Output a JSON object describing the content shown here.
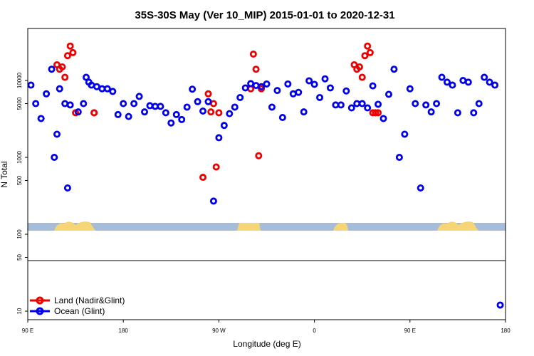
{
  "chart_data": {
    "type": "scatter",
    "title": "35S-30S May (Ver 10_MIP)   2015-01-01 to 2020-12-31",
    "xlabel": "Longitude (deg E)",
    "ylabel": "N Total",
    "x_tick_labels": [
      "90 E",
      "180",
      "90 W",
      "0",
      "90 E",
      "180"
    ],
    "xlim": [
      90,
      540
    ],
    "y_scale": "log",
    "ylim": [
      7,
      50000
    ],
    "y_tick_labels": [
      "10",
      "50",
      "100",
      "500",
      "1000",
      "5000",
      "10000"
    ],
    "y_tick_values": [
      10,
      50,
      100,
      500,
      1000,
      5000,
      10000
    ],
    "y_axis_break": [
      50,
      150
    ],
    "land_ocean_strip": {
      "ocean_color": "#a6bdd9",
      "land_color": "#f5d576"
    },
    "legend": {
      "position": "bottom-left",
      "entries": [
        "Land (Nadir&Glint)",
        "Ocean (Glint)"
      ]
    },
    "series": [
      {
        "name": "Land (Nadir&Glint)",
        "color": "#ee0000",
        "x": [
          117.5,
          120,
          122.5,
          125,
          127.5,
          130,
          132.5,
          135,
          152.5,
          152.5,
          255,
          260,
          262.5,
          265,
          267.5,
          270,
          300,
          302.5,
          305,
          307.5,
          310,
          397.5,
          400,
          402.5,
          405,
          407.5,
          410,
          412.5,
          415,
          417.5,
          420
        ],
        "y": [
          16000,
          14000,
          15000,
          11000,
          21000,
          28000,
          23000,
          3800,
          3800,
          3800,
          550,
          6700,
          3900,
          5000,
          750,
          3800,
          7800,
          22000,
          14000,
          1050,
          7800,
          16000,
          14000,
          15000,
          11000,
          21000,
          28000,
          23000,
          3800,
          3800,
          3800
        ]
      },
      {
        "name": "Ocean (Glint)",
        "color": "#0000ee",
        "x": [
          93,
          97.5,
          102.5,
          107.5,
          112.5,
          115,
          117.5,
          120,
          125,
          127.5,
          130,
          137.5,
          142.5,
          145,
          147.5,
          150,
          155,
          160,
          165,
          170,
          175,
          180,
          185,
          190,
          195,
          200,
          205,
          210,
          215,
          220,
          225,
          230,
          235,
          240,
          245,
          250,
          255,
          260,
          265,
          270,
          275,
          280,
          285,
          290,
          295,
          300,
          305,
          310,
          315,
          320,
          325,
          330,
          335,
          340,
          345,
          350,
          355,
          360,
          365,
          370,
          375,
          380,
          385,
          390,
          395,
          400,
          405,
          410,
          415,
          420,
          425,
          430,
          435,
          440,
          445,
          450,
          455,
          460,
          465,
          470,
          475,
          480,
          485,
          490,
          495,
          500,
          505,
          510,
          515,
          520,
          525,
          530,
          535
        ],
        "y": [
          8700,
          5000,
          3200,
          6700,
          14000,
          1000,
          2000,
          7800,
          5000,
          400,
          4800,
          3900,
          5000,
          11000,
          9500,
          8700,
          8300,
          7800,
          7800,
          7200,
          3600,
          5000,
          3400,
          5000,
          6200,
          3900,
          4700,
          4600,
          4600,
          3800,
          2800,
          3600,
          3100,
          4500,
          7700,
          5300,
          4000,
          5300,
          270,
          1800,
          2600,
          3700,
          4500,
          6000,
          8000,
          9100,
          8600,
          8300,
          9000,
          4500,
          7400,
          3300,
          9000,
          6700,
          7000,
          3900,
          9900,
          8900,
          6000,
          10500,
          8000,
          4800,
          4800,
          7300,
          4400,
          5000,
          5000,
          4400,
          8500,
          4900,
          3200,
          6600,
          14000,
          1000,
          2000,
          7800,
          5000,
          400,
          4800,
          3900,
          5000,
          11000,
          9500,
          8700,
          3800,
          10000,
          9500,
          3800,
          5000,
          11000,
          9500,
          8700,
          12
        ]
      }
    ]
  }
}
